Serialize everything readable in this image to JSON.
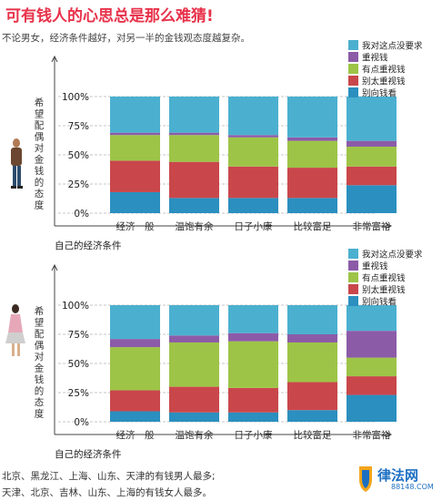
{
  "title": "可有钱人的心思总是那么难猜!",
  "subtitle": "不论男女，经济条件越好，对另一半的金钱观态度越复杂。",
  "legend_labels": [
    "我对这点没要求",
    "重视钱",
    "有点重视钱",
    "别太重视钱",
    "别向钱看"
  ],
  "colors": {
    "title": "#e8324a",
    "我对这点没要求": "#4bb0cf",
    "重视钱": "#8c5ba8",
    "有点重视钱": "#9dc447",
    "别太重视钱": "#c9474b",
    "别向钱看": "#2b8fbf"
  },
  "chart_data": [
    {
      "type": "bar",
      "stacked": true,
      "panel": "male",
      "categories": [
        "经济一般",
        "温饱有余",
        "日子小康",
        "比较富足",
        "非常富裕"
      ],
      "series": [
        {
          "name": "别向钱看",
          "values": [
            18,
            13,
            13,
            13,
            24
          ]
        },
        {
          "name": "别太重视钱",
          "values": [
            27,
            31,
            27,
            26,
            16
          ]
        },
        {
          "name": "有点重视钱",
          "values": [
            22,
            23,
            25,
            23,
            17
          ]
        },
        {
          "name": "重视钱",
          "values": [
            2,
            2,
            2,
            3,
            5
          ]
        },
        {
          "name": "我对这点没要求",
          "values": [
            31,
            31,
            33,
            35,
            38
          ]
        }
      ],
      "ylabel": "希望配偶对金钱的态度",
      "xlabel": "自己的经济条件",
      "yticks": [
        "100%",
        "75%",
        "50%",
        "25%",
        "0%"
      ],
      "ylim": [
        0,
        100
      ],
      "legend_position": "top-right",
      "grid": true
    },
    {
      "type": "bar",
      "stacked": true,
      "panel": "female",
      "categories": [
        "经济一般",
        "温饱有余",
        "日子小康",
        "比较富足",
        "非常富裕"
      ],
      "series": [
        {
          "name": "别向钱看",
          "values": [
            9,
            8,
            8,
            10,
            23
          ]
        },
        {
          "name": "别太重视钱",
          "values": [
            18,
            22,
            21,
            24,
            16
          ]
        },
        {
          "name": "有点重视钱",
          "values": [
            37,
            38,
            40,
            34,
            16
          ]
        },
        {
          "name": "重视钱",
          "values": [
            7,
            6,
            7,
            7,
            23
          ]
        },
        {
          "name": "我对这点没要求",
          "values": [
            29,
            26,
            24,
            25,
            22
          ]
        }
      ],
      "ylabel": "希望配偶对金钱的态度",
      "xlabel": "自己的经济条件",
      "yticks": [
        "100%",
        "75%",
        "50%",
        "25%",
        "0%"
      ],
      "ylim": [
        0,
        100
      ],
      "legend_position": "top-right",
      "grid": true
    }
  ],
  "footer": {
    "line1": "北京、黑龙江、上海、山东、天津的有钱男人最多;",
    "line2": "天津、北京、吉林、山东、上海的有钱女人最多。"
  },
  "logo": {
    "name": "律法网",
    "url": "88148.COM"
  }
}
